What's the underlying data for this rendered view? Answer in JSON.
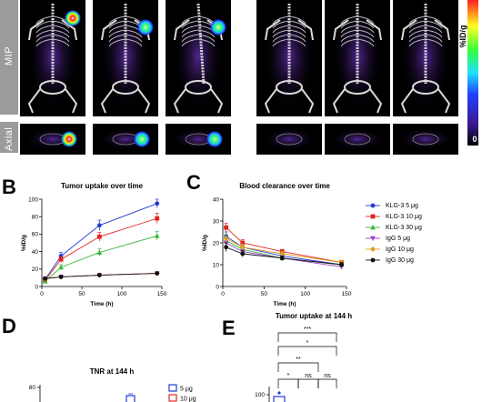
{
  "panels": {
    "A": {
      "row_labels": [
        "MIP",
        "Axial"
      ],
      "colorbar": {
        "title": "%ID/g",
        "min_label": "0",
        "max_label": ""
      }
    },
    "B": {
      "letter": "B"
    },
    "C": {
      "letter": "C"
    },
    "D": {
      "letter": "D"
    },
    "E": {
      "letter": "E"
    }
  },
  "colors": {
    "klg3_5": "#1f3bd6",
    "klg3_10": "#e0261f",
    "klg3_30": "#3cb83c",
    "igg_5": "#a040c8",
    "igg_10": "#e0a020",
    "igg_30": "#111111",
    "row_label_bg": "#9b9b9b"
  },
  "legend": [
    {
      "label": "KLG-3 5 μg",
      "marker": "circle",
      "color_key": "klg3_5"
    },
    {
      "label": "KLG-3 10 μg",
      "marker": "square",
      "color_key": "klg3_10"
    },
    {
      "label": "KLG-3 30 μg",
      "marker": "triangle",
      "color_key": "klg3_30"
    },
    {
      "label": "IgG 5 μg",
      "marker": "tri-down",
      "color_key": "igg_5"
    },
    {
      "label": "IgG 10 μg",
      "marker": "diamond",
      "color_key": "igg_10"
    },
    {
      "label": "IgG 30 μg",
      "marker": "circle",
      "color_key": "igg_30"
    }
  ],
  "chart_data": [
    {
      "id": "B",
      "type": "line",
      "title": "Tumor uptake over time",
      "xlabel": "Time (h)",
      "ylabel": "%ID/g",
      "xlim": [
        0,
        150
      ],
      "ylim": [
        0,
        100
      ],
      "xticks": [
        0,
        50,
        100,
        150
      ],
      "yticks": [
        0,
        20,
        40,
        60,
        80,
        100
      ],
      "x": [
        4,
        24,
        72,
        144
      ],
      "series": [
        {
          "name": "KLG-3 5 μg",
          "color_key": "klg3_5",
          "marker": "circle",
          "values": [
            8,
            35,
            70,
            95
          ],
          "err": [
            2,
            4,
            6,
            5
          ]
        },
        {
          "name": "KLG-3 10 μg",
          "color_key": "klg3_10",
          "marker": "square",
          "values": [
            7,
            31,
            57,
            78
          ],
          "err": [
            2,
            3,
            5,
            6
          ]
        },
        {
          "name": "KLG-3 30 μg",
          "color_key": "klg3_30",
          "marker": "triangle",
          "values": [
            6,
            22,
            39,
            58
          ],
          "err": [
            1,
            3,
            4,
            5
          ]
        },
        {
          "name": "IgG 5 μg",
          "color_key": "igg_5",
          "marker": "tri-down",
          "values": [
            9,
            11,
            13,
            15
          ],
          "err": [
            1,
            1,
            1,
            1
          ]
        },
        {
          "name": "IgG 10 μg",
          "color_key": "igg_10",
          "marker": "diamond",
          "values": [
            9,
            11,
            13,
            15
          ],
          "err": [
            1,
            1,
            1,
            1
          ]
        },
        {
          "name": "IgG 30 μg",
          "color_key": "igg_30",
          "marker": "circle",
          "values": [
            9,
            11,
            13,
            15
          ],
          "err": [
            1,
            1,
            1,
            1
          ]
        }
      ]
    },
    {
      "id": "C",
      "type": "line",
      "title": "Blood clearance over time",
      "xlabel": "Time (h)",
      "ylabel": "%ID/g",
      "xlim": [
        0,
        150
      ],
      "ylim": [
        0,
        40
      ],
      "xticks": [
        0,
        50,
        100,
        150
      ],
      "yticks": [
        0,
        10,
        20,
        30,
        40
      ],
      "x": [
        4,
        24,
        72,
        144
      ],
      "series": [
        {
          "name": "KLG-3 5 μg",
          "color_key": "klg3_5",
          "marker": "circle",
          "values": [
            23,
            18,
            14,
            10
          ],
          "err": [
            2,
            1.5,
            1,
            1
          ]
        },
        {
          "name": "KLG-3 10 μg",
          "color_key": "klg3_10",
          "marker": "square",
          "values": [
            27,
            20,
            16,
            11
          ],
          "err": [
            2,
            1.5,
            1,
            1
          ]
        },
        {
          "name": "KLG-3 30 μg",
          "color_key": "klg3_30",
          "marker": "triangle",
          "values": [
            21,
            17,
            13,
            10
          ],
          "err": [
            2,
            1.5,
            1,
            1
          ]
        },
        {
          "name": "IgG 5 μg",
          "color_key": "igg_5",
          "marker": "tri-down",
          "values": [
            20,
            16,
            13,
            9
          ],
          "err": [
            2,
            1.5,
            1,
            1
          ]
        },
        {
          "name": "IgG 10 μg",
          "color_key": "igg_10",
          "marker": "diamond",
          "values": [
            22,
            18,
            15,
            11
          ],
          "err": [
            2,
            1.5,
            1,
            1
          ]
        },
        {
          "name": "IgG 30 μg",
          "color_key": "igg_30",
          "marker": "circle",
          "values": [
            18,
            15,
            13,
            10
          ],
          "err": [
            2,
            1.5,
            1,
            1
          ]
        }
      ]
    },
    {
      "id": "D",
      "type": "bar",
      "title": "TNR at 144 h",
      "yticks": [
        80
      ],
      "legend": [
        "5 μg",
        "10 μg"
      ],
      "legend_colors": [
        "klg3_5",
        "klg3_10"
      ]
    },
    {
      "id": "E",
      "type": "bar",
      "title": "Tumor uptake at 144 h",
      "yticks": [
        100
      ],
      "significance": [
        "***",
        "*",
        "**",
        "*",
        "ns",
        "ns"
      ]
    }
  ]
}
